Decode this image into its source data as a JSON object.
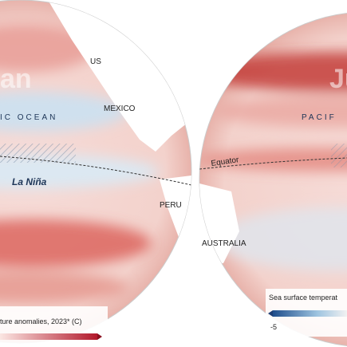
{
  "left_map": {
    "title": "an",
    "ocean": "IC OCEAN",
    "countries": [
      "US",
      "MEXICO",
      "PERU"
    ],
    "annotation": "La Niña",
    "legend_title": "ture anomalies, 2023* (C)"
  },
  "right_map": {
    "title": "Ju",
    "ocean": "PACIF",
    "equator": "Equator",
    "countries": [
      "AUSTRALIA"
    ],
    "legend_title": "Sea surface temperat",
    "legend_tick": -5
  }
}
